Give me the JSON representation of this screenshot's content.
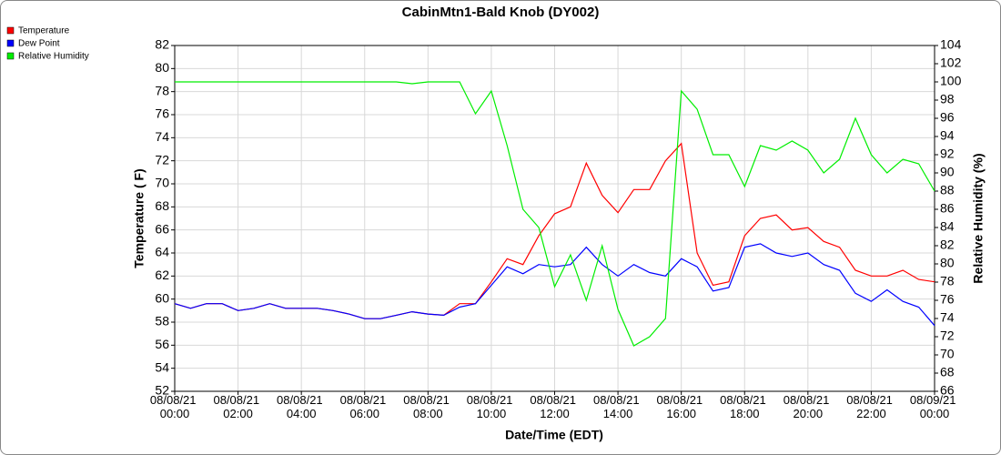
{
  "chart_data": {
    "type": "line",
    "title": "CabinMtn1-Bald Knob (DY002)",
    "x_label": "Date/Time (EDT)",
    "y_label": "Temperature ( F)",
    "y2_label": "Relative Humidity (%)",
    "legend": "upper left",
    "grid": true,
    "x": [
      0,
      0.5,
      1,
      1.5,
      2,
      2.5,
      3,
      3.5,
      4,
      4.5,
      5,
      5.5,
      6,
      6.5,
      7,
      7.5,
      8,
      8.5,
      9,
      9.5,
      10,
      10.5,
      11,
      11.5,
      12,
      12.5,
      13,
      13.5,
      14,
      14.5,
      15,
      15.5,
      16,
      16.5,
      17,
      17.5,
      18,
      18.5,
      19,
      19.5,
      20,
      20.5,
      21,
      21.5,
      22,
      22.5,
      23,
      23.5,
      24
    ],
    "xlim": [
      0,
      24
    ],
    "xticks": [
      {
        "value": 0,
        "label": "08/08/21 00:00"
      },
      {
        "value": 2,
        "label": "08/08/21 02:00"
      },
      {
        "value": 4,
        "label": "08/08/21 04:00"
      },
      {
        "value": 6,
        "label": "08/08/21 06:00"
      },
      {
        "value": 8,
        "label": "08/08/21 08:00"
      },
      {
        "value": 10,
        "label": "08/08/21 10:00"
      },
      {
        "value": 12,
        "label": "08/08/21 12:00"
      },
      {
        "value": 14,
        "label": "08/08/21 14:00"
      },
      {
        "value": 16,
        "label": "08/08/21 16:00"
      },
      {
        "value": 18,
        "label": "08/08/21 18:00"
      },
      {
        "value": 20,
        "label": "08/08/21 20:00"
      },
      {
        "value": 22,
        "label": "08/08/21 22:00"
      },
      {
        "value": 24,
        "label": "08/09/21 00:00"
      }
    ],
    "ylim": [
      52,
      82
    ],
    "yticks": [
      52,
      54,
      56,
      58,
      60,
      62,
      64,
      66,
      68,
      70,
      72,
      74,
      76,
      78,
      80,
      82
    ],
    "y2lim": [
      66,
      104
    ],
    "y2ticks": [
      66,
      68,
      70,
      72,
      74,
      76,
      78,
      80,
      82,
      84,
      86,
      88,
      90,
      92,
      94,
      96,
      98,
      100,
      102,
      104
    ],
    "series": [
      {
        "name": "Temperature",
        "color": "#ff0000",
        "values": [
          59.6,
          59.2,
          59.6,
          59.6,
          59.0,
          59.2,
          59.6,
          59.2,
          59.2,
          59.2,
          59.0,
          58.7,
          58.3,
          58.3,
          58.6,
          58.9,
          58.7,
          58.6,
          59.6,
          59.6,
          61.5,
          63.5,
          63.0,
          65.5,
          67.4,
          68.0,
          71.8,
          69.0,
          67.5,
          69.5,
          69.5,
          72.0,
          73.5,
          64.0,
          61.2,
          61.5,
          65.5,
          67.0,
          67.3,
          66.0,
          66.2,
          65.0,
          64.5,
          62.5,
          62.0,
          62.0,
          62.5,
          61.7,
          61.5
        ]
      },
      {
        "name": "Dew Point",
        "color": "#0000ff",
        "values": [
          59.6,
          59.2,
          59.6,
          59.6,
          59.0,
          59.2,
          59.6,
          59.2,
          59.2,
          59.2,
          59.0,
          58.7,
          58.3,
          58.3,
          58.6,
          58.9,
          58.7,
          58.6,
          59.3,
          59.6,
          61.2,
          62.8,
          62.2,
          63.0,
          62.8,
          63.0,
          64.5,
          63.0,
          62.0,
          63.0,
          62.3,
          62.0,
          63.5,
          62.8,
          60.7,
          61.0,
          64.5,
          64.8,
          64.0,
          63.7,
          64.0,
          63.0,
          62.5,
          60.5,
          59.8,
          60.8,
          59.8,
          59.3,
          57.7
        ]
      },
      {
        "name": "Relative Humidity",
        "color": "#00ee00",
        "axis": "y2",
        "values": [
          100,
          100,
          100,
          100,
          100,
          100,
          100,
          100,
          100,
          100,
          100,
          100,
          100,
          100,
          100,
          99.8,
          100,
          100,
          100,
          96.5,
          99,
          93,
          86,
          84,
          77.5,
          81,
          76,
          82,
          75,
          71,
          72,
          74,
          99,
          97,
          92,
          92,
          88.5,
          93,
          92.5,
          93.5,
          92.5,
          90,
          91.5,
          96,
          92,
          90,
          91.5,
          91,
          88
        ]
      }
    ]
  }
}
